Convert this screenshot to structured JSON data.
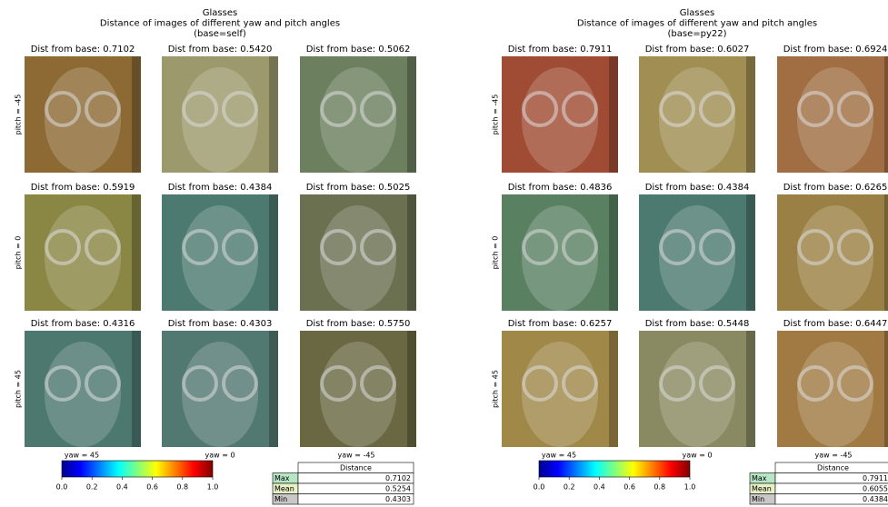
{
  "panels": [
    {
      "title": [
        "Glasses",
        "Distance of images of different yaw and pitch angles",
        "(base=self)"
      ],
      "row_labels": [
        "pitch = -45",
        "pitch = 0",
        "pitch = 45"
      ],
      "col_labels": [
        "yaw = 45",
        "yaw = 0",
        "yaw = -45"
      ],
      "cells": [
        [
          {
            "label": "Dist from base: 0.7102",
            "color": "#8d6a34"
          },
          {
            "label": "Dist from base: 0.5420",
            "color": "#9c9a6c"
          },
          {
            "label": "Dist from base: 0.5062",
            "color": "#6c7f5e"
          }
        ],
        [
          {
            "label": "Dist from base: 0.5919",
            "color": "#8a8644"
          },
          {
            "label": "Dist from base: 0.4384",
            "color": "#4d7a70"
          },
          {
            "label": "Dist from base: 0.5025",
            "color": "#6a7050"
          }
        ],
        [
          {
            "label": "Dist from base: 0.4316",
            "color": "#4c7870"
          },
          {
            "label": "Dist from base: 0.4303",
            "color": "#527872"
          },
          {
            "label": "Dist from base: 0.5750",
            "color": "#6a6842"
          }
        ]
      ],
      "colorbar_ticks": [
        "0.0",
        "0.2",
        "0.4",
        "0.6",
        "0.8",
        "1.0"
      ],
      "table": {
        "header": "Distance",
        "rows": [
          [
            "Max",
            "0.7102"
          ],
          [
            "Mean",
            "0.5254"
          ],
          [
            "Min",
            "0.4303"
          ]
        ]
      }
    },
    {
      "title": [
        "Glasses",
        "Distance of images of different yaw and pitch angles",
        "(base=py22)"
      ],
      "row_labels": [
        "pitch = -45",
        "pitch = 0",
        "pitch = 45"
      ],
      "col_labels": [
        "yaw = 45",
        "yaw = 0",
        "yaw = -45"
      ],
      "cells": [
        [
          {
            "label": "Dist from base: 0.7911",
            "color": "#a04c34"
          },
          {
            "label": "Dist from base: 0.6027",
            "color": "#a08e52"
          },
          {
            "label": "Dist from base: 0.6924",
            "color": "#a06e42"
          }
        ],
        [
          {
            "label": "Dist from base: 0.4836",
            "color": "#5a8062"
          },
          {
            "label": "Dist from base: 0.4384",
            "color": "#4d7a70"
          },
          {
            "label": "Dist from base: 0.6265",
            "color": "#9a8044"
          }
        ],
        [
          {
            "label": "Dist from base: 0.6257",
            "color": "#a08848"
          },
          {
            "label": "Dist from base: 0.5448",
            "color": "#8a8a62"
          },
          {
            "label": "Dist from base: 0.6447",
            "color": "#a07a42"
          }
        ]
      ],
      "colorbar_ticks": [
        "0.0",
        "0.2",
        "0.4",
        "0.6",
        "0.8",
        "1.0"
      ],
      "table": {
        "header": "Distance",
        "rows": [
          [
            "Max",
            "0.7911"
          ],
          [
            "Mean",
            "0.6055"
          ],
          [
            "Min",
            "0.4384"
          ]
        ]
      }
    }
  ]
}
